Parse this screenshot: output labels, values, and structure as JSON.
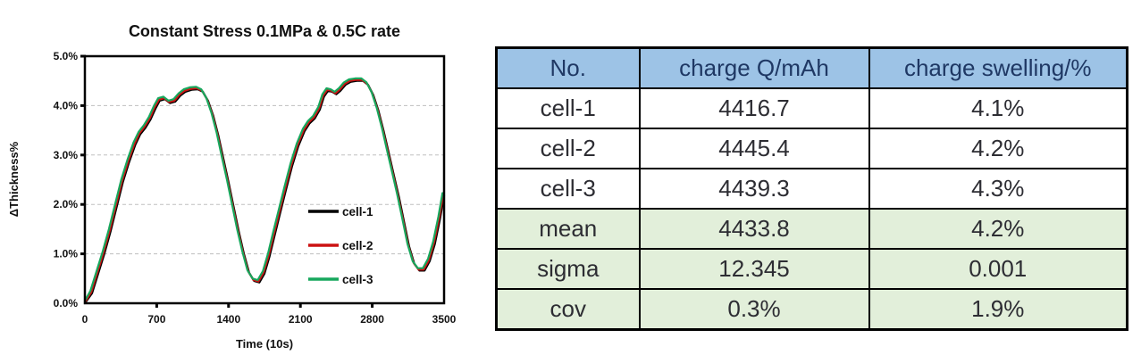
{
  "chart_data": {
    "type": "line",
    "title": "Constant Stress 0.1MPa & 0.5C rate",
    "xlabel": "Time (10s)",
    "ylabel": "ΔThickness%",
    "xlim": [
      0,
      3500
    ],
    "ylim_percent": [
      0,
      5
    ],
    "xticks": [
      0,
      700,
      1400,
      2100,
      2800,
      3500
    ],
    "yticks_percent": [
      0,
      1,
      2,
      3,
      4,
      5
    ],
    "ytick_labels": [
      "0.0%",
      "1.0%",
      "2.0%",
      "3.0%",
      "4.0%",
      "5.0%"
    ],
    "grid": "horizontal-dashed",
    "grid_color": "#bfbfbf",
    "legend_position": "inside-right",
    "series": [
      {
        "name": "cell-1",
        "color": "#000000",
        "t_shift": 0,
        "v_shift": 0.0
      },
      {
        "name": "cell-2",
        "color": "#cc1212",
        "t_shift": -8,
        "v_shift": 0.02
      },
      {
        "name": "cell-3",
        "color": "#17a75d",
        "t_shift": -16,
        "v_shift": 0.05
      }
    ],
    "base_curve_t_v_percent": [
      [
        0,
        0.0
      ],
      [
        70,
        0.2
      ],
      [
        130,
        0.6
      ],
      [
        190,
        1.0
      ],
      [
        250,
        1.45
      ],
      [
        310,
        1.95
      ],
      [
        370,
        2.45
      ],
      [
        430,
        2.85
      ],
      [
        490,
        3.2
      ],
      [
        540,
        3.42
      ],
      [
        590,
        3.55
      ],
      [
        640,
        3.72
      ],
      [
        690,
        3.95
      ],
      [
        730,
        4.1
      ],
      [
        780,
        4.13
      ],
      [
        830,
        4.05
      ],
      [
        880,
        4.08
      ],
      [
        930,
        4.2
      ],
      [
        980,
        4.28
      ],
      [
        1040,
        4.32
      ],
      [
        1100,
        4.33
      ],
      [
        1150,
        4.28
      ],
      [
        1200,
        4.1
      ],
      [
        1250,
        3.8
      ],
      [
        1300,
        3.4
      ],
      [
        1350,
        2.92
      ],
      [
        1400,
        2.45
      ],
      [
        1450,
        1.95
      ],
      [
        1500,
        1.45
      ],
      [
        1550,
        1.0
      ],
      [
        1600,
        0.62
      ],
      [
        1650,
        0.45
      ],
      [
        1700,
        0.42
      ],
      [
        1750,
        0.6
      ],
      [
        1800,
        0.95
      ],
      [
        1850,
        1.38
      ],
      [
        1900,
        1.8
      ],
      [
        1960,
        2.3
      ],
      [
        2020,
        2.78
      ],
      [
        2080,
        3.18
      ],
      [
        2140,
        3.48
      ],
      [
        2190,
        3.64
      ],
      [
        2240,
        3.74
      ],
      [
        2290,
        3.92
      ],
      [
        2330,
        4.18
      ],
      [
        2370,
        4.3
      ],
      [
        2410,
        4.28
      ],
      [
        2450,
        4.23
      ],
      [
        2490,
        4.3
      ],
      [
        2540,
        4.42
      ],
      [
        2590,
        4.48
      ],
      [
        2650,
        4.5
      ],
      [
        2710,
        4.5
      ],
      [
        2760,
        4.42
      ],
      [
        2810,
        4.22
      ],
      [
        2860,
        3.9
      ],
      [
        2910,
        3.5
      ],
      [
        2960,
        3.05
      ],
      [
        3010,
        2.6
      ],
      [
        3060,
        2.15
      ],
      [
        3110,
        1.65
      ],
      [
        3160,
        1.15
      ],
      [
        3210,
        0.8
      ],
      [
        3260,
        0.66
      ],
      [
        3310,
        0.66
      ],
      [
        3360,
        0.85
      ],
      [
        3410,
        1.2
      ],
      [
        3460,
        1.7
      ],
      [
        3500,
        2.18
      ]
    ]
  },
  "table": {
    "headers": [
      "No.",
      "charge Q/mAh",
      "charge swelling/%"
    ],
    "rows": [
      {
        "label": "cell-1",
        "values": [
          "4416.7",
          "4.1%"
        ],
        "group": "data"
      },
      {
        "label": "cell-2",
        "values": [
          "4445.4",
          "4.2%"
        ],
        "group": "data"
      },
      {
        "label": "cell-3",
        "values": [
          "4439.3",
          "4.3%"
        ],
        "group": "data"
      },
      {
        "label": "mean",
        "values": [
          "4433.8",
          "4.2%"
        ],
        "group": "summary"
      },
      {
        "label": "sigma",
        "values": [
          "12.345",
          "0.001"
        ],
        "group": "summary"
      },
      {
        "label": "cov",
        "values": [
          "0.3%",
          "1.9%"
        ],
        "group": "summary"
      }
    ],
    "colors": {
      "header_bg": "#9dc3e6",
      "data_bg": "#ffffff",
      "summary_bg": "#e2efda",
      "border": "#000000"
    }
  }
}
